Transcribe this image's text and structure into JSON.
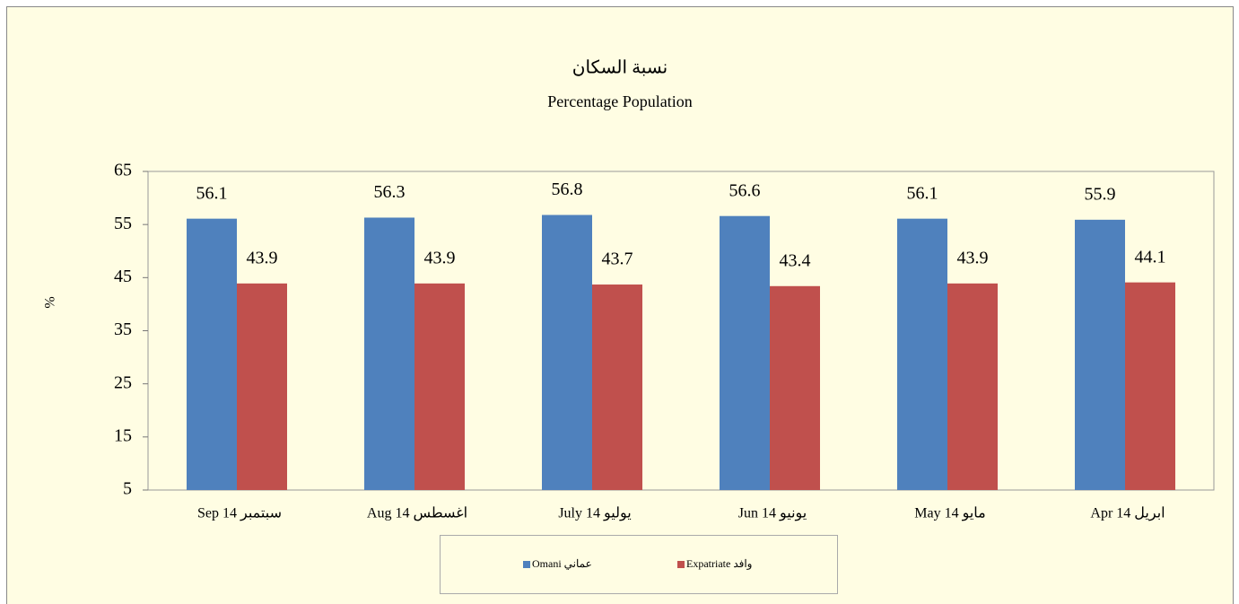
{
  "chart_data": {
    "type": "bar",
    "title": "نسبة السكان",
    "subtitle": "Percentage Population",
    "y_label": "%",
    "categories": [
      "Sep 14 سبتمبر",
      "Aug 14 اغسطس",
      "July 14 يوليو",
      "Jun 14 يونيو",
      "May 14 مايو",
      "Apr 14 ابريل"
    ],
    "series": [
      {
        "name": "Omani عماني",
        "color": "#4f81bd",
        "values": [
          56.1,
          56.3,
          56.8,
          56.6,
          56.1,
          55.9
        ]
      },
      {
        "name": "Expatriate وافد",
        "color": "#c0504d",
        "values": [
          43.9,
          43.9,
          43.7,
          43.4,
          43.9,
          44.1
        ]
      }
    ],
    "ylim": [
      5,
      65
    ],
    "yticks": [
      5,
      15,
      25,
      35,
      45,
      55,
      65
    ],
    "legend": "bottom"
  }
}
